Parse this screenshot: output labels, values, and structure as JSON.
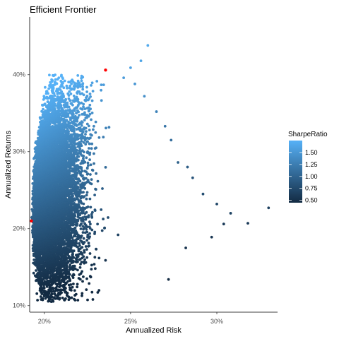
{
  "chart_data": {
    "type": "scatter",
    "title": "Efficient Frontier",
    "xlabel": "Annualized Risk",
    "ylabel": "Annualized Returns",
    "xlim": [
      0.1915,
      0.3352
    ],
    "ylim": [
      0.0915,
      0.475
    ],
    "x_ticks": [
      0.2,
      0.25,
      0.3
    ],
    "x_tick_labels": [
      "20%",
      "25%",
      "30%"
    ],
    "y_ticks": [
      0.1,
      0.2,
      0.3,
      0.4
    ],
    "y_tick_labels": [
      "10%",
      "20%",
      "30%",
      "40%"
    ],
    "grid": false,
    "legend": {
      "title": "SharpeRatio",
      "placement": "right",
      "breaks": [
        0.5,
        0.75,
        1.0,
        1.25,
        1.5
      ],
      "labels": [
        "0.50",
        "0.75",
        "1.00",
        "1.25",
        "1.50"
      ],
      "range": [
        0.45,
        1.75
      ],
      "color_low": "#132B43",
      "color_high": "#56B1F7"
    },
    "points_summary": {
      "count_approx": 50000,
      "risk_range": [
        0.192,
        0.33
      ],
      "return_range": [
        0.105,
        0.44
      ],
      "sharpe_range": [
        0.45,
        1.75
      ]
    },
    "outliers": [
      {
        "x": 0.26,
        "y": 0.438,
        "sharpe": 1.68
      },
      {
        "x": 0.256,
        "y": 0.418,
        "sharpe": 1.63
      },
      {
        "x": 0.25,
        "y": 0.409,
        "sharpe": 1.61
      },
      {
        "x": 0.246,
        "y": 0.396,
        "sharpe": 1.55
      },
      {
        "x": 0.2525,
        "y": 0.388,
        "sharpe": 1.5
      },
      {
        "x": 0.258,
        "y": 0.372,
        "sharpe": 1.42
      },
      {
        "x": 0.265,
        "y": 0.352,
        "sharpe": 1.3
      },
      {
        "x": 0.27,
        "y": 0.333,
        "sharpe": 1.18
      },
      {
        "x": 0.2735,
        "y": 0.315,
        "sharpe": 1.1
      },
      {
        "x": 0.2775,
        "y": 0.286,
        "sharpe": 0.97
      },
      {
        "x": 0.283,
        "y": 0.28,
        "sharpe": 0.93
      },
      {
        "x": 0.286,
        "y": 0.266,
        "sharpe": 0.85
      },
      {
        "x": 0.292,
        "y": 0.245,
        "sharpe": 0.78
      },
      {
        "x": 0.3,
        "y": 0.232,
        "sharpe": 0.72
      },
      {
        "x": 0.308,
        "y": 0.22,
        "sharpe": 0.68
      },
      {
        "x": 0.33,
        "y": 0.227,
        "sharpe": 0.66
      },
      {
        "x": 0.318,
        "y": 0.207,
        "sharpe": 0.6
      },
      {
        "x": 0.304,
        "y": 0.206,
        "sharpe": 0.61
      },
      {
        "x": 0.297,
        "y": 0.189,
        "sharpe": 0.56
      },
      {
        "x": 0.282,
        "y": 0.175,
        "sharpe": 0.53
      },
      {
        "x": 0.272,
        "y": 0.134,
        "sharpe": 0.46
      }
    ],
    "highlighted_points": [
      {
        "x": 0.2355,
        "y": 0.406,
        "color": "#ff0000"
      },
      {
        "x": 0.1925,
        "y": 0.21,
        "color": "#ff0000"
      }
    ]
  }
}
